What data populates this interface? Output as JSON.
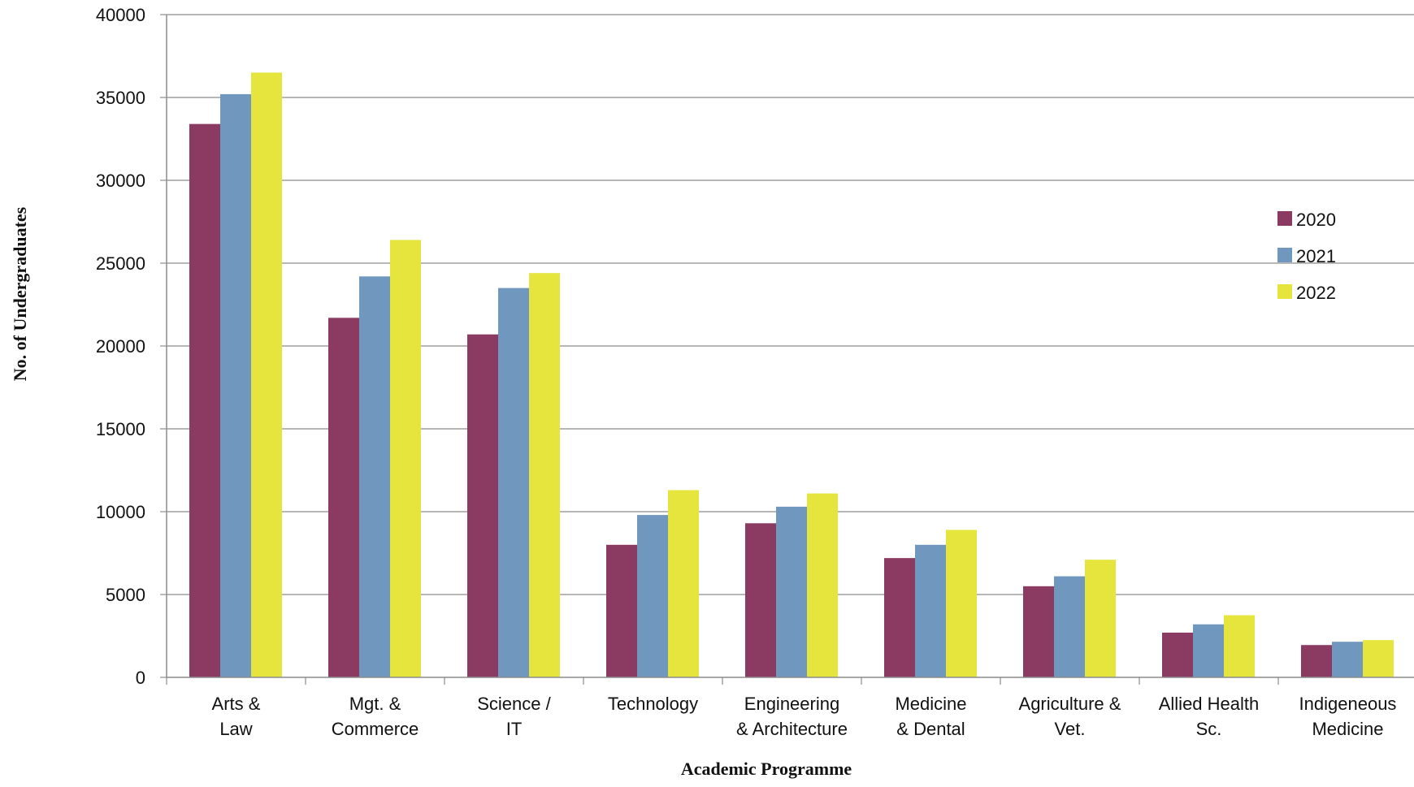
{
  "chart_data": {
    "type": "bar",
    "title": "",
    "xlabel": "Academic Programme",
    "ylabel": "No. of Undergraduates",
    "ylim": [
      0,
      40000
    ],
    "yticks": [
      0,
      5000,
      10000,
      15000,
      20000,
      25000,
      30000,
      35000,
      40000
    ],
    "grid": "horizontal",
    "legend_position": "right",
    "categories": [
      [
        "Arts &",
        "Law"
      ],
      [
        "Mgt. &",
        "Commerce"
      ],
      [
        "Science /",
        "IT"
      ],
      [
        "Technology"
      ],
      [
        "Engineering",
        "& Architecture"
      ],
      [
        "Medicine",
        "& Dental"
      ],
      [
        "Agriculture &",
        "Vet."
      ],
      [
        "Allied Health",
        "Sc."
      ],
      [
        "Indigeneous",
        "Medicine"
      ]
    ],
    "series": [
      {
        "name": "2020",
        "color": "#8b3a62",
        "values": [
          33400,
          21700,
          20700,
          8000,
          9300,
          7200,
          5500,
          2700,
          1950
        ]
      },
      {
        "name": "2021",
        "color": "#7098bf",
        "values": [
          35200,
          24200,
          23500,
          9800,
          10300,
          8000,
          6100,
          3200,
          2150
        ]
      },
      {
        "name": "2022",
        "color": "#e5e53d",
        "values": [
          36500,
          26400,
          24400,
          11300,
          11100,
          8900,
          7100,
          3750,
          2250
        ]
      }
    ]
  }
}
